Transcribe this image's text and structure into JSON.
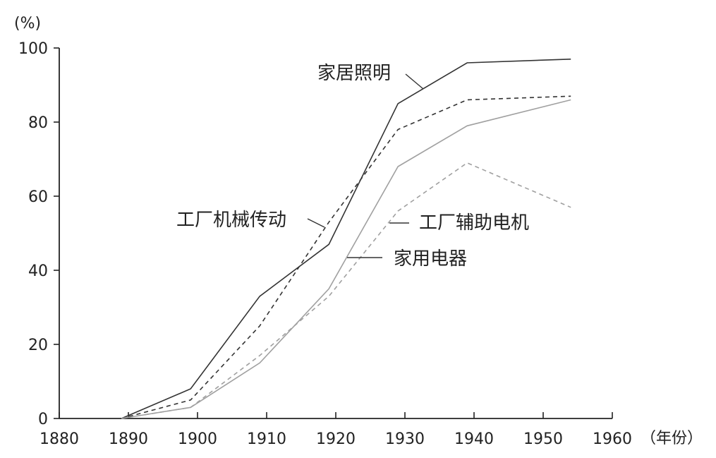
{
  "chart_data": {
    "type": "line",
    "title": "",
    "xlabel": "（年份）",
    "ylabel": "(%)",
    "xlim": [
      1880,
      1960
    ],
    "ylim": [
      0,
      100
    ],
    "x_ticks": [
      1880,
      1890,
      1900,
      1910,
      1920,
      1930,
      1940,
      1950,
      1960
    ],
    "y_ticks": [
      0,
      20,
      40,
      60,
      80,
      100
    ],
    "grid": false,
    "legend": "none",
    "series": [
      {
        "name": "家居照明",
        "color": "#333333",
        "style": "solid",
        "points": [
          [
            1889,
            0
          ],
          [
            1899,
            8
          ],
          [
            1909,
            33
          ],
          [
            1919,
            47
          ],
          [
            1929,
            85
          ],
          [
            1939,
            96
          ],
          [
            1954,
            97
          ]
        ]
      },
      {
        "name": "工厂机械传动",
        "color": "#333333",
        "style": "dashed",
        "points": [
          [
            1889,
            0
          ],
          [
            1899,
            5
          ],
          [
            1909,
            25
          ],
          [
            1919,
            53
          ],
          [
            1929,
            78
          ],
          [
            1939,
            86
          ],
          [
            1954,
            87
          ]
        ]
      },
      {
        "name": "家用电器",
        "color": "#a0a0a0",
        "style": "solid",
        "points": [
          [
            1889,
            0
          ],
          [
            1899,
            3
          ],
          [
            1909,
            15
          ],
          [
            1919,
            35
          ],
          [
            1929,
            68
          ],
          [
            1939,
            79
          ],
          [
            1954,
            86
          ]
        ]
      },
      {
        "name": "工厂辅助电机",
        "color": "#a0a0a0",
        "style": "dashed",
        "points": [
          [
            1889,
            0
          ],
          [
            1899,
            3
          ],
          [
            1909,
            17
          ],
          [
            1919,
            33
          ],
          [
            1929,
            56
          ],
          [
            1939,
            69
          ],
          [
            1954,
            57
          ]
        ]
      }
    ]
  }
}
